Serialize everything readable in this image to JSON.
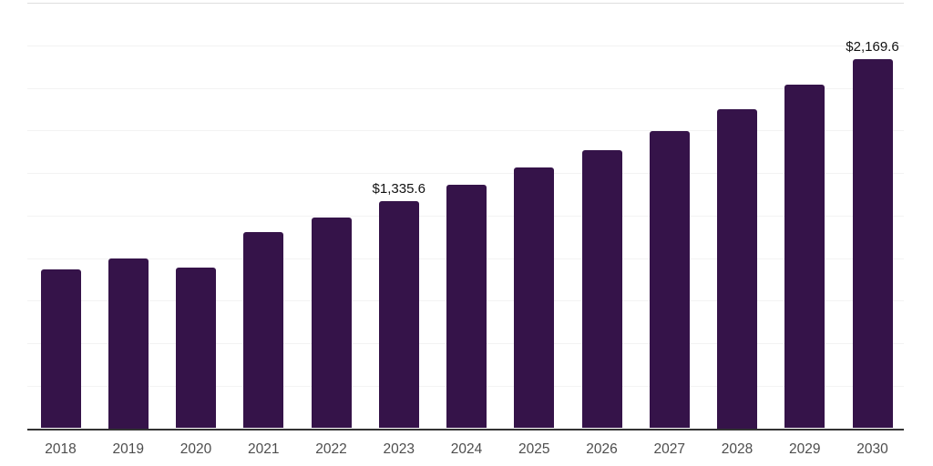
{
  "page": {
    "background": "#ffffff"
  },
  "chart_data": {
    "type": "bar",
    "title": "",
    "xlabel": "",
    "ylabel": "",
    "categories": [
      "2018",
      "2019",
      "2020",
      "2021",
      "2022",
      "2023",
      "2024",
      "2025",
      "2026",
      "2027",
      "2028",
      "2029",
      "2030"
    ],
    "values": [
      935,
      1000,
      945,
      1150,
      1240,
      1335.6,
      1430,
      1530,
      1635,
      1745,
      1875,
      2020,
      2169.6
    ],
    "data_labels": [
      "",
      "",
      "",
      "",
      "",
      "$1,335.6",
      "",
      "",
      "",
      "",
      "",
      "",
      "$2,169.6"
    ],
    "ylim": [
      0,
      2500
    ],
    "ytick_step": 250,
    "grid": true,
    "legend": "none",
    "colors": {
      "bar": "#351349",
      "axis": "#333333",
      "gridline": "#f3f3f3",
      "top_gridline": "#dedede",
      "x_label": "#4d4d4d",
      "data_label": "#121212"
    }
  }
}
